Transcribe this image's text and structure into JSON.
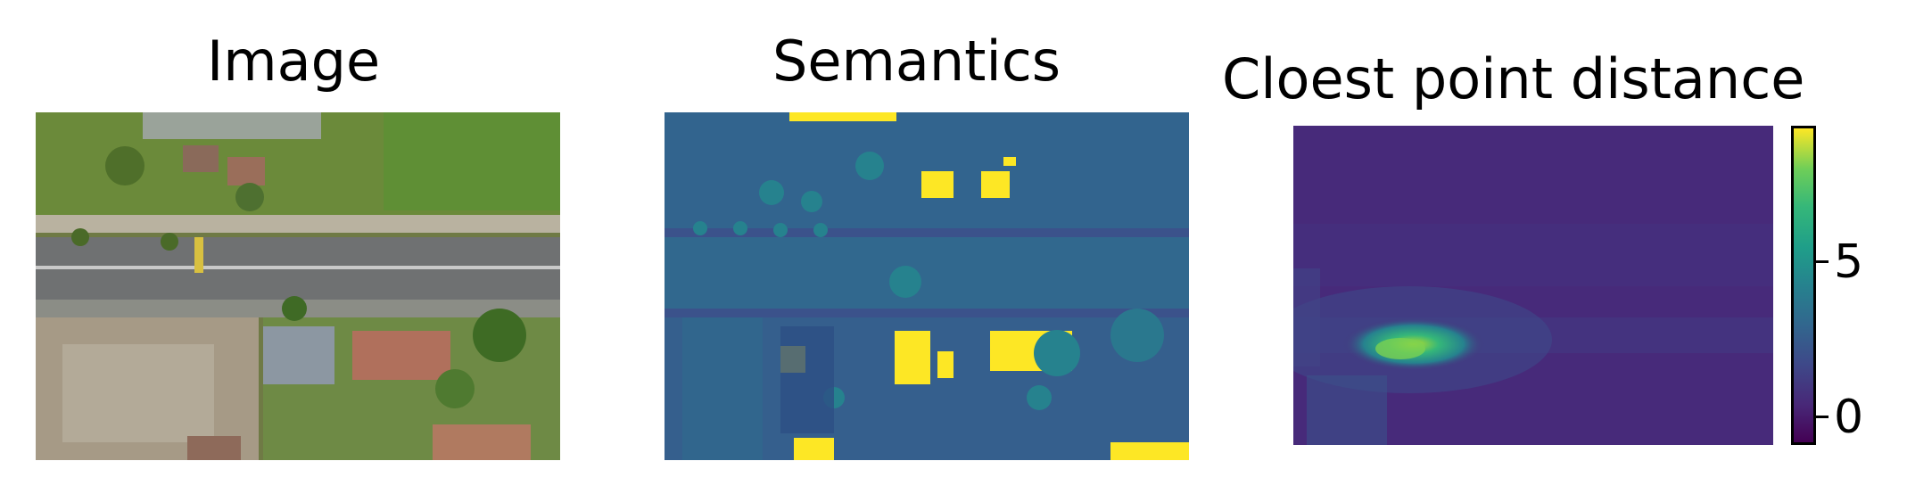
{
  "panels": {
    "image": {
      "title": "Image"
    },
    "semantics": {
      "title": "Semantics"
    },
    "distance": {
      "title": "Cloest point distance"
    }
  },
  "colorbar": {
    "colormap": "viridis",
    "ticks": [
      {
        "label": "5",
        "value": 5
      },
      {
        "label": "0",
        "value": 0
      }
    ],
    "range": [
      -0.8,
      9
    ]
  },
  "colors": {
    "viridis_low": "#440154",
    "viridis_mid": "#21918c",
    "viridis_high": "#fde725"
  }
}
